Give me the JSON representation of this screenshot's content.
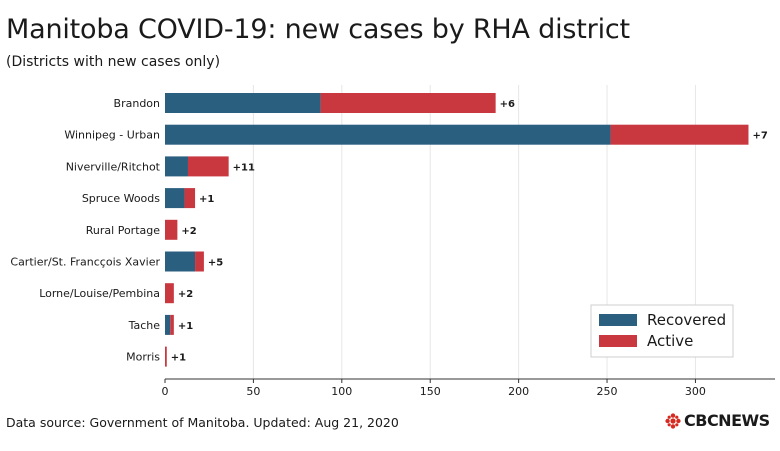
{
  "title": "Manitoba COVID-19: new cases by RHA district",
  "subtitle": "(Districts with new cases only)",
  "footer": "Data source: Government of Manitoba. Updated: Aug 21, 2020",
  "logo_text": "CBCNEWS",
  "colors": {
    "recovered": "#2b5f80",
    "active": "#c9373f",
    "grid": "#e6e6e6",
    "axis": "#333333"
  },
  "chart_data": {
    "type": "bar",
    "orientation": "horizontal",
    "stacked": true,
    "title": "Manitoba COVID-19: new cases by RHA district",
    "subtitle": "(Districts with new cases only)",
    "categories": [
      "Brandon",
      "Winnipeg - Urban",
      "Niverville/Ritchot",
      "Spruce Woods",
      "Rural Portage",
      "Cartier/St. Francçois Xavier",
      "Lorne/Louise/Pembina",
      "Tache",
      "Morris"
    ],
    "series": [
      {
        "name": "Recovered",
        "values": [
          88,
          252,
          13,
          11,
          0,
          17,
          0,
          3,
          0
        ]
      },
      {
        "name": "Active",
        "values": [
          99,
          78,
          23,
          6,
          7,
          5,
          5,
          2,
          1
        ]
      }
    ],
    "data_labels": [
      "+6",
      "+7",
      "+11",
      "+1",
      "+2",
      "+5",
      "+2",
      "+1",
      "+1"
    ],
    "xlim": [
      0,
      345
    ],
    "xticks": [
      0,
      50,
      100,
      150,
      200,
      250,
      300
    ],
    "xlabel": "",
    "ylabel": "",
    "grid": "vertical",
    "legend": {
      "position": "bottom-right",
      "entries": [
        "Recovered",
        "Active"
      ]
    }
  }
}
